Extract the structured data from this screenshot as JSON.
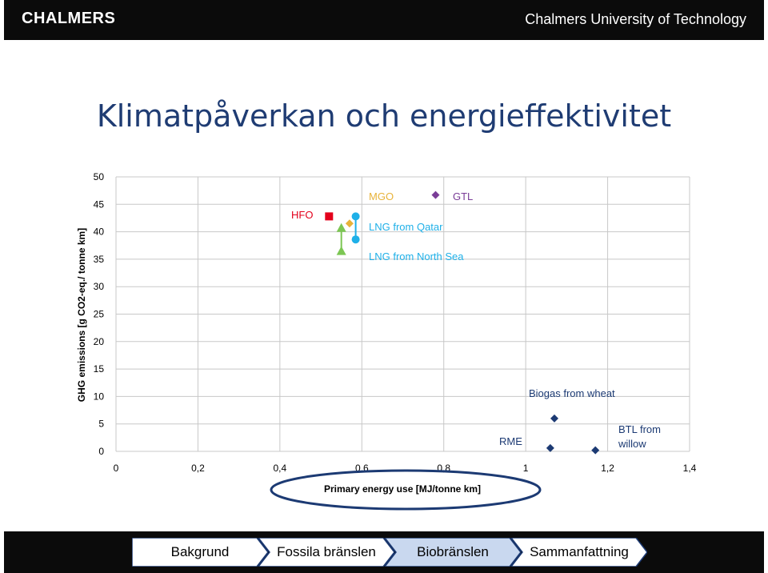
{
  "header": {
    "logo": "CHALMERS",
    "university": "Chalmers University of Technology"
  },
  "slide": {
    "title": "Klimatpåverkan och energieffektivitet"
  },
  "chart_data": {
    "type": "scatter",
    "title": "",
    "xlabel": "Primary energy use [MJ/tonne km]",
    "ylabel": "GHG emissions [g CO2-eq./ tonne km]",
    "xlim": [
      0,
      1.4
    ],
    "ylim": [
      0,
      50
    ],
    "x_ticks": [
      0,
      0.2,
      0.4,
      0.6,
      0.8,
      1,
      1.2,
      1.4
    ],
    "x_tick_labels": [
      "0",
      "0,2",
      "0,4",
      "0,6",
      "0,8",
      "1",
      "1,2",
      "1,4"
    ],
    "y_ticks": [
      0,
      5,
      10,
      15,
      20,
      25,
      30,
      35,
      40,
      45,
      50
    ],
    "y_tick_labels": [
      "0",
      "5",
      "10",
      "15",
      "20",
      "25",
      "30",
      "35",
      "40",
      "45",
      "50"
    ],
    "grid": true,
    "xlabel_highlighted": true,
    "points": [
      {
        "label": "HFO",
        "marker": "square",
        "color": "#e3001b",
        "x": 0.52,
        "y": 42.8
      },
      {
        "label": "MGO",
        "marker": "diamond",
        "color": "#e8b33a",
        "x": 0.57,
        "y": 41.5
      },
      {
        "label": "",
        "marker": "triangle",
        "color": "#7cc653",
        "x": 0.55,
        "y": 40.7
      },
      {
        "label": "",
        "marker": "triangle",
        "color": "#7cc653",
        "x": 0.55,
        "y": 36.5
      },
      {
        "label": "LNG from Qatar",
        "marker": "circle",
        "color": "#1fb0e8",
        "x": 0.585,
        "y": 42.8
      },
      {
        "label": "LNG from North Sea",
        "marker": "circle",
        "color": "#1fb0e8",
        "x": 0.585,
        "y": 38.6
      },
      {
        "label": "GTL",
        "marker": "diamond",
        "color": "#7a3d97",
        "x": 0.78,
        "y": 46.7
      },
      {
        "label": "Biogas from wheat",
        "marker": "diamond",
        "color": "#1c3a73",
        "x": 1.07,
        "y": 6.0
      },
      {
        "label": "RME",
        "marker": "diamond",
        "color": "#1c3a73",
        "x": 1.06,
        "y": 0.6
      },
      {
        "label": "BTL from willow",
        "marker": "diamond",
        "color": "#1c3a73",
        "x": 1.17,
        "y": 0.2
      }
    ]
  },
  "nav": {
    "items": [
      {
        "label": "Bakgrund",
        "active": false
      },
      {
        "label": "Fossila bränslen",
        "active": false
      },
      {
        "label": "Biobränslen",
        "active": true
      },
      {
        "label": "Sammanfattning",
        "active": false
      }
    ]
  }
}
